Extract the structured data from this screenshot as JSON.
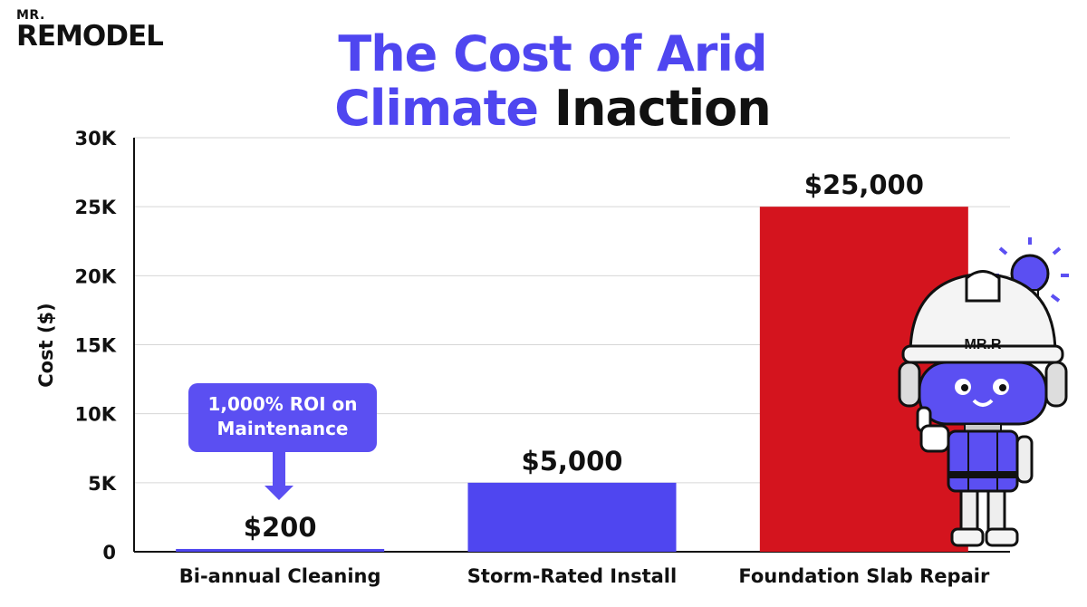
{
  "logo": {
    "top": "MR.",
    "main": "REMODEL"
  },
  "title": {
    "accent": "The Cost of Arid Climate",
    "dark": "Inaction"
  },
  "callout": {
    "line1": "1,000% ROI on",
    "line2": "Maintenance"
  },
  "mascot": {
    "helmet_text": "MR.R",
    "icon": "robot-mascot-icon"
  },
  "colors": {
    "accent": "#4f46f0",
    "danger": "#d4141e",
    "text": "#111111"
  },
  "chart_data": {
    "type": "bar",
    "categories": [
      "Bi-annual Cleaning",
      "Storm-Rated Install",
      "Foundation Slab Repair"
    ],
    "values": [
      200,
      5000,
      25000
    ],
    "value_labels": [
      "$200",
      "$5,000",
      "$25,000"
    ],
    "bar_colors": [
      "#4f46f0",
      "#4f46f0",
      "#d4141e"
    ],
    "ylabel": "Cost ($)",
    "xlabel": "",
    "ylim": [
      0,
      30000
    ],
    "yticks": [
      0,
      5000,
      10000,
      15000,
      20000,
      25000,
      30000
    ],
    "ytick_labels": [
      "0",
      "5K",
      "10K",
      "15K",
      "20K",
      "25K",
      "30K"
    ],
    "grid": true,
    "legend": "none"
  }
}
